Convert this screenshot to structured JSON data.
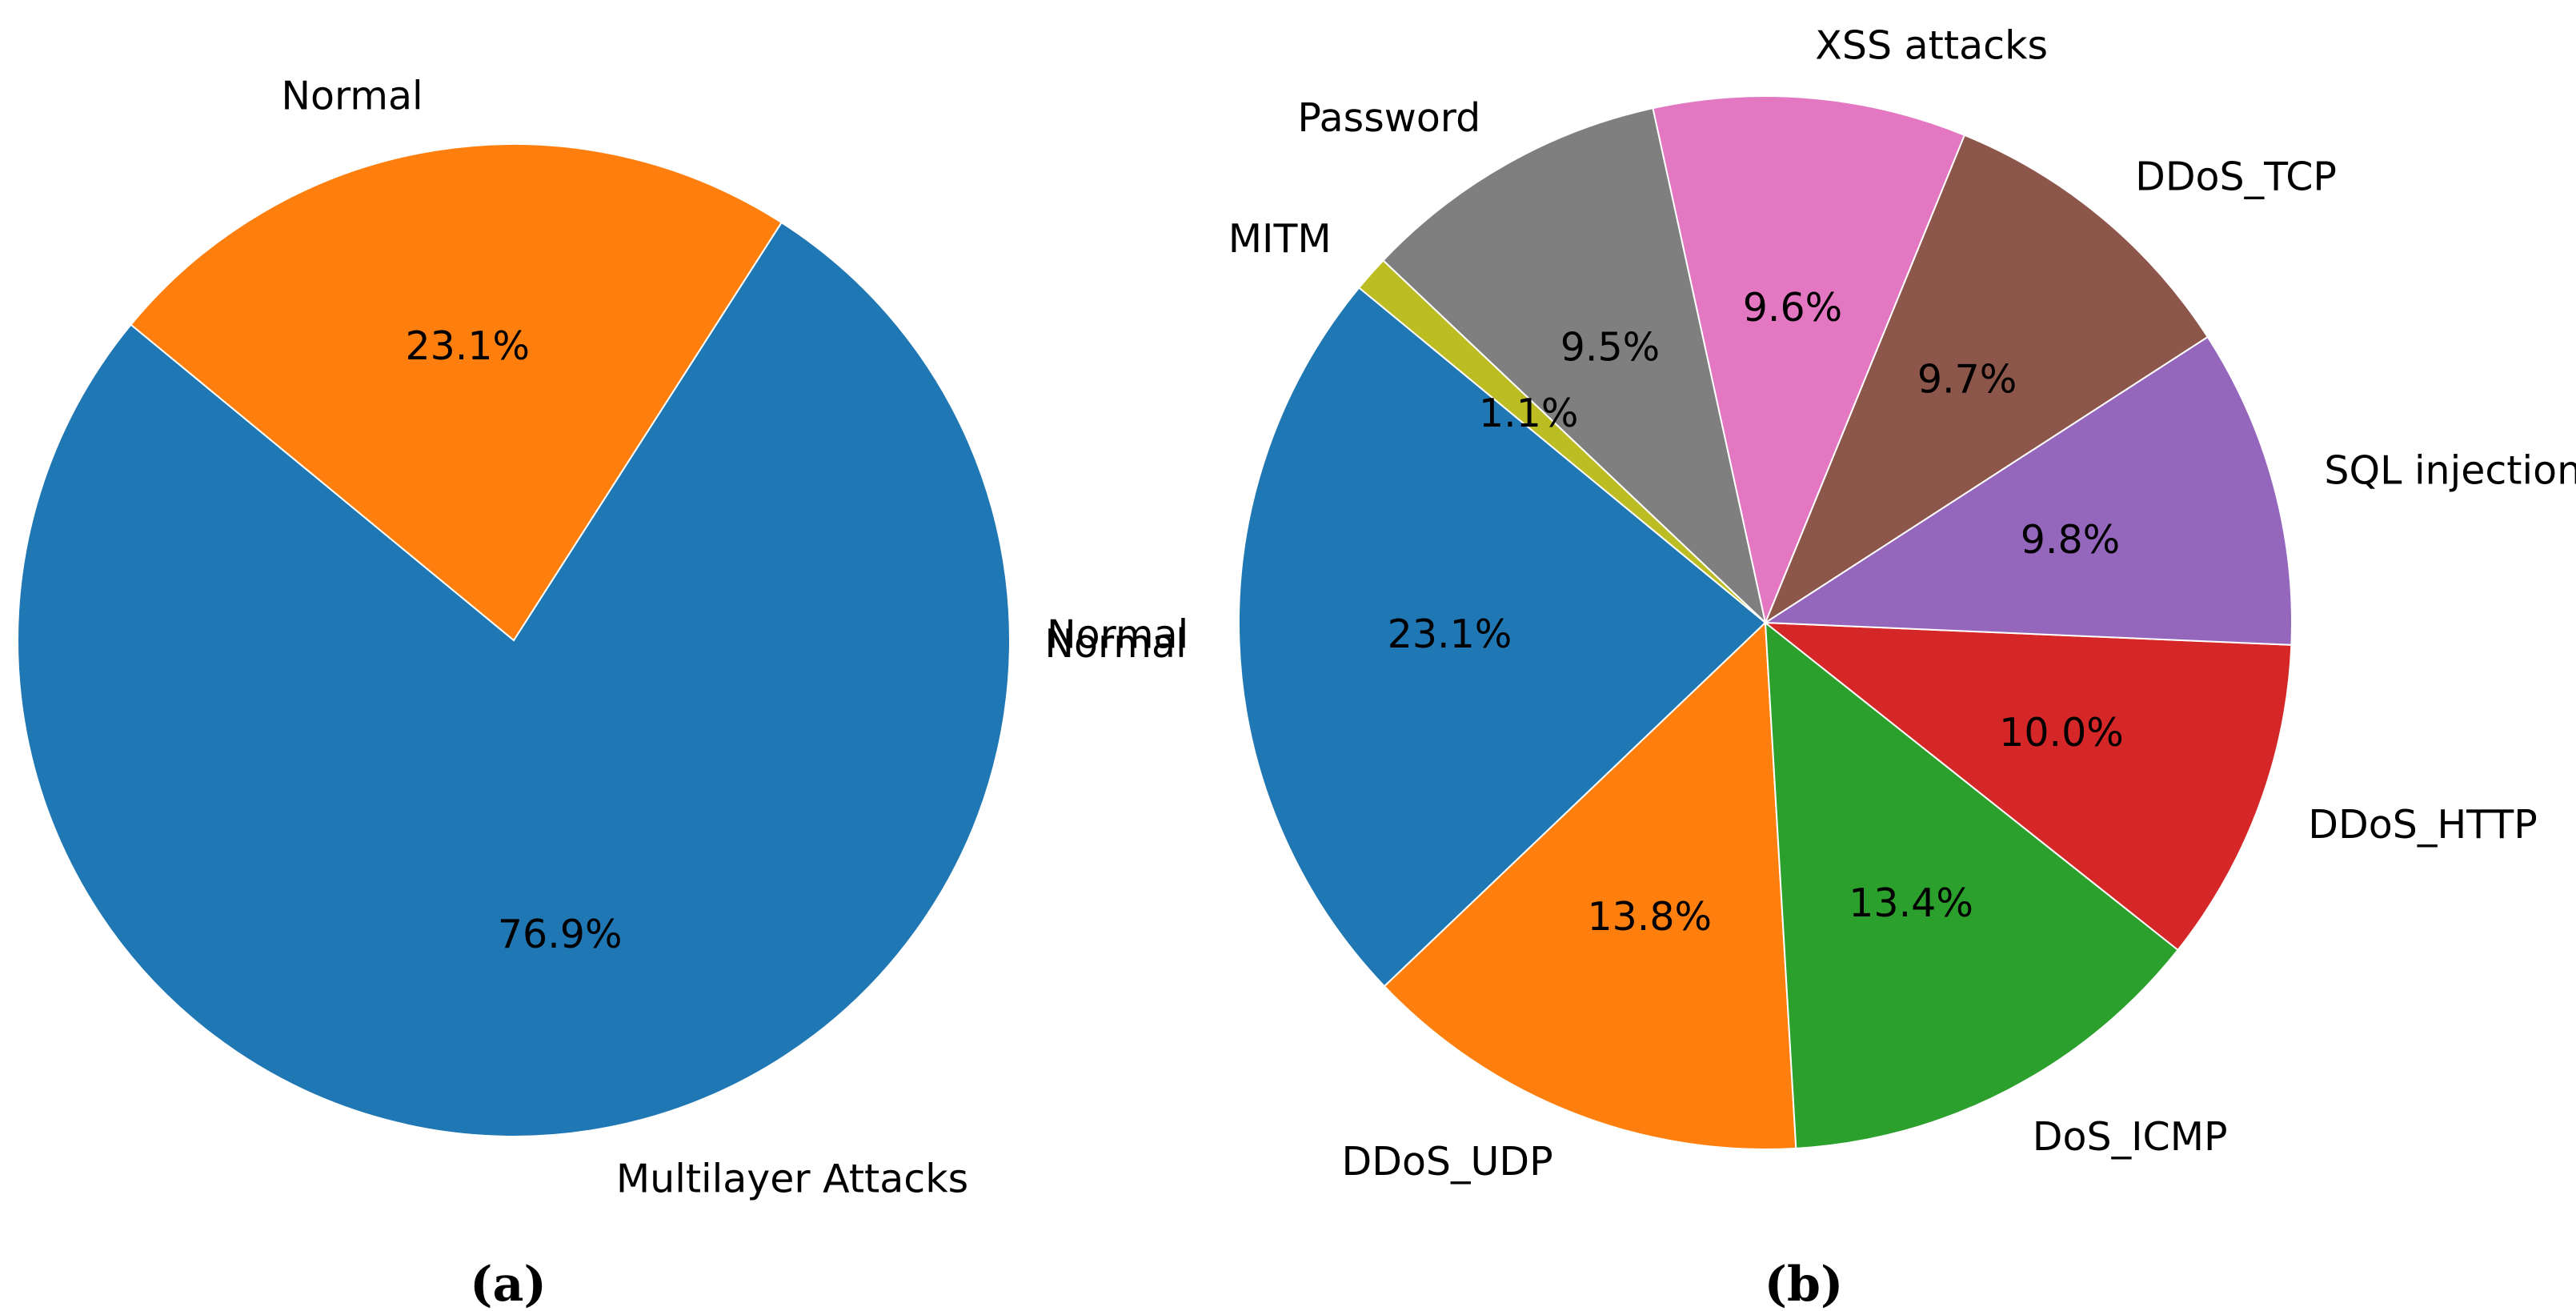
{
  "chart_data": [
    {
      "type": "pie",
      "caption": "(a)",
      "slices": [
        {
          "label": "Multilayer Attacks",
          "value": 76.9,
          "pct_label": "76.9%",
          "color": "#1f77b4"
        },
        {
          "label": "Normal",
          "value": 23.1,
          "pct_label": "23.1%",
          "color": "#ff7f0e"
        }
      ],
      "extra_labels": [
        "Normal"
      ]
    },
    {
      "type": "pie",
      "caption": "(b)",
      "slices": [
        {
          "label": "Normal",
          "value": 23.1,
          "pct_label": "23.1%",
          "color": "#1f77b4"
        },
        {
          "label": "DDoS_UDP",
          "value": 13.8,
          "pct_label": "13.8%",
          "color": "#ff7f0e"
        },
        {
          "label": "DoS_ICMP",
          "value": 13.4,
          "pct_label": "13.4%",
          "color": "#2ca02c"
        },
        {
          "label": "DDoS_HTTP",
          "value": 10.0,
          "pct_label": "10.0%",
          "color": "#d62728"
        },
        {
          "label": "SQL injection",
          "value": 9.8,
          "pct_label": "9.8%",
          "color": "#9467bd"
        },
        {
          "label": "DDoS_TCP",
          "value": 9.7,
          "pct_label": "9.7%",
          "color": "#8c564b"
        },
        {
          "label": "XSS attacks",
          "value": 9.6,
          "pct_label": "9.6%",
          "color": "#e377c2"
        },
        {
          "label": "Password",
          "value": 9.5,
          "pct_label": "9.5%",
          "color": "#7f7f7f"
        },
        {
          "label": "MITM",
          "value": 1.1,
          "pct_label": "1.1%",
          "color": "#bcbd22"
        }
      ]
    }
  ]
}
